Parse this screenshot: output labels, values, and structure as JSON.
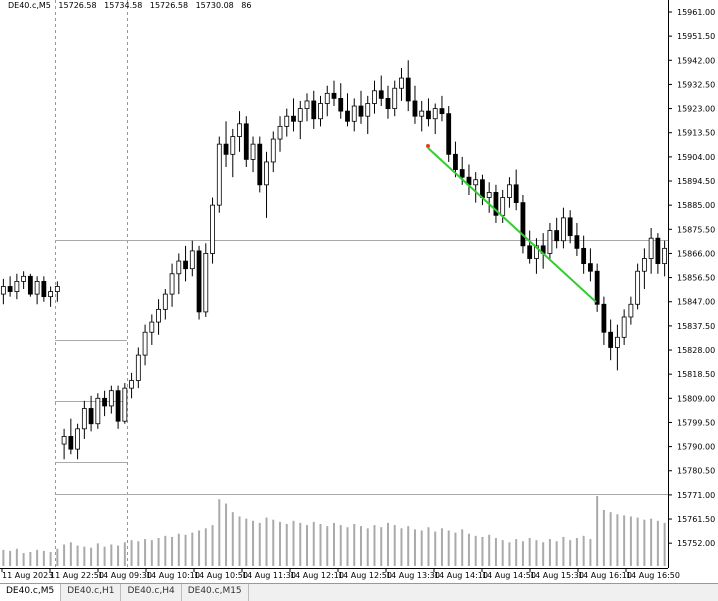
{
  "chart_data": {
    "type": "candlestick",
    "header": {
      "symbol": "DE40.c,M5",
      "ohlc": [
        15726.58,
        15734.58,
        15726.58,
        15730.08
      ],
      "volume": 86
    },
    "ylim": [
      15738.3,
      15965.72
    ],
    "yticks": [
      {
        "value": 15961,
        "label": "15961.00"
      },
      {
        "value": 15951.5,
        "label": "15951.50"
      },
      {
        "value": 15942,
        "label": "15942.00"
      },
      {
        "value": 15932.5,
        "label": "15932.50"
      },
      {
        "value": 15923,
        "label": "15923.00"
      },
      {
        "value": 15913.5,
        "label": "15913.50"
      },
      {
        "value": 15904,
        "label": "15904.00"
      },
      {
        "value": 15894.5,
        "label": "15894.50"
      },
      {
        "value": 15885,
        "label": "15885.00"
      },
      {
        "value": 15875.5,
        "label": "15875.50"
      },
      {
        "value": 15866,
        "label": "15866.00"
      },
      {
        "value": 15856.5,
        "label": "15856.50"
      },
      {
        "value": 15847,
        "label": "15847.00"
      },
      {
        "value": 15837.5,
        "label": "15837.50"
      },
      {
        "value": 15828,
        "label": "15828.00"
      },
      {
        "value": 15818.5,
        "label": "15818.50"
      },
      {
        "value": 15809,
        "label": "15809.00"
      },
      {
        "value": 15799.5,
        "label": "15799.50"
      },
      {
        "value": 15790,
        "label": "15790.00"
      },
      {
        "value": 15780.5,
        "label": "15780.50"
      },
      {
        "value": 15771,
        "label": "15771.00"
      },
      {
        "value": 15761.5,
        "label": "15761.50"
      },
      {
        "value": 15752,
        "label": "15752.00"
      }
    ],
    "xlabels": [
      "11 Aug 2023",
      "11 Aug 22:50",
      "14 Aug 09:30",
      "14 Aug 10:10",
      "14 Aug 10:50",
      "14 Aug 11:30",
      "14 Aug 12:10",
      "14 Aug 12:50",
      "14 Aug 13:30",
      "14 Aug 14:10",
      "14 Aug 14:50",
      "14 Aug 15:30",
      "14 Aug 16:10",
      "14 Aug 16:50"
    ],
    "ohlc": [
      [
        15850,
        15856,
        15846,
        15853
      ],
      [
        15853,
        15857,
        15849,
        15851
      ],
      [
        15851,
        15858,
        15848,
        15855
      ],
      [
        15855,
        15859,
        15852,
        15857
      ],
      [
        15857,
        15858,
        15849,
        15850
      ],
      [
        15850,
        15857,
        15846,
        15855
      ],
      [
        15855,
        15857,
        15847,
        15849
      ],
      [
        15849,
        15853,
        15845,
        15851
      ],
      [
        15851,
        15855,
        15847,
        15853
      ],
      [
        15791,
        15797,
        15785,
        15794
      ],
      [
        15794,
        15801,
        15787,
        15789
      ],
      [
        15789,
        15799,
        15785,
        15797
      ],
      [
        15797,
        15808,
        15793,
        15805
      ],
      [
        15805,
        15810,
        15796,
        15799
      ],
      [
        15799,
        15811,
        15797,
        15809
      ],
      [
        15809,
        15812,
        15802,
        15806
      ],
      [
        15806,
        15814,
        15803,
        15812
      ],
      [
        15812,
        15814,
        15797,
        15800
      ],
      [
        15800,
        15815,
        15799,
        15813
      ],
      [
        15813,
        15819,
        15809,
        15816
      ],
      [
        15816,
        15829,
        15813,
        15826
      ],
      [
        15826,
        15838,
        15822,
        15835
      ],
      [
        15835,
        15842,
        15830,
        15839
      ],
      [
        15839,
        15848,
        15834,
        15844
      ],
      [
        15844,
        15852,
        15840,
        15850
      ],
      [
        15850,
        15862,
        15845,
        15858
      ],
      [
        15858,
        15866,
        15850,
        15863
      ],
      [
        15863,
        15869,
        15855,
        15860
      ],
      [
        15860,
        15871,
        15857,
        15867
      ],
      [
        15867,
        15869,
        15840,
        15843
      ],
      [
        15843,
        15870,
        15841,
        15866
      ],
      [
        15866,
        15888,
        15862,
        15885
      ],
      [
        15885,
        15912,
        15882,
        15909
      ],
      [
        15909,
        15918,
        15900,
        15905
      ],
      [
        15905,
        15915,
        15896,
        15912
      ],
      [
        15912,
        15922,
        15906,
        15917
      ],
      [
        15917,
        15920,
        15900,
        15903
      ],
      [
        15903,
        15912,
        15898,
        15909
      ],
      [
        15909,
        15912,
        15890,
        15893
      ],
      [
        15893,
        15906,
        15880,
        15902
      ],
      [
        15902,
        15914,
        15898,
        15911
      ],
      [
        15911,
        15920,
        15906,
        15916
      ],
      [
        15916,
        15923,
        15912,
        15920
      ],
      [
        15920,
        15927,
        15914,
        15918
      ],
      [
        15918,
        15926,
        15911,
        15923
      ],
      [
        15923,
        15929,
        15918,
        15926
      ],
      [
        15926,
        15930,
        15915,
        15919
      ],
      [
        15919,
        15928,
        15916,
        15925
      ],
      [
        15925,
        15932,
        15920,
        15929
      ],
      [
        15929,
        15934,
        15924,
        15927
      ],
      [
        15927,
        15933,
        15919,
        15922
      ],
      [
        15922,
        15929,
        15916,
        15918
      ],
      [
        15918,
        15927,
        15914,
        15924
      ],
      [
        15924,
        15930,
        15917,
        15920
      ],
      [
        15920,
        15928,
        15913,
        15925
      ],
      [
        15925,
        15934,
        15921,
        15930
      ],
      [
        15930,
        15936,
        15924,
        15927
      ],
      [
        15927,
        15932,
        15919,
        15923
      ],
      [
        15923,
        15934,
        15920,
        15931
      ],
      [
        15931,
        15939,
        15926,
        15935
      ],
      [
        15935,
        15942,
        15922,
        15926
      ],
      [
        15926,
        15932,
        15917,
        15920
      ],
      [
        15920,
        15926,
        15914,
        15922
      ],
      [
        15922,
        15927,
        15916,
        15919
      ],
      [
        15919,
        15925,
        15913,
        15923
      ],
      [
        15923,
        15928,
        15918,
        15921
      ],
      [
        15921,
        15924,
        15902,
        15905
      ],
      [
        15905,
        15910,
        15896,
        15899
      ],
      [
        15899,
        15904,
        15893,
        15896
      ],
      [
        15896,
        15901,
        15889,
        15893
      ],
      [
        15893,
        15898,
        15886,
        15895
      ],
      [
        15895,
        15897,
        15885,
        15888
      ],
      [
        15888,
        15894,
        15882,
        15890
      ],
      [
        15890,
        15893,
        15878,
        15881
      ],
      [
        15881,
        15891,
        15878,
        15888
      ],
      [
        15888,
        15896,
        15884,
        15893
      ],
      [
        15893,
        15899,
        15883,
        15886
      ],
      [
        15886,
        15889,
        15866,
        15869
      ],
      [
        15869,
        15875,
        15862,
        15864
      ],
      [
        15864,
        15872,
        15858,
        15869
      ],
      [
        15869,
        15874,
        15860,
        15866
      ],
      [
        15866,
        15878,
        15864,
        15875
      ],
      [
        15875,
        15880,
        15868,
        15871
      ],
      [
        15871,
        15884,
        15868,
        15880
      ],
      [
        15880,
        15883,
        15870,
        15873
      ],
      [
        15873,
        15878,
        15865,
        15868
      ],
      [
        15868,
        15873,
        15858,
        15862
      ],
      [
        15862,
        15868,
        15855,
        15859
      ],
      [
        15859,
        15862,
        15843,
        15846
      ],
      [
        15846,
        15849,
        15830,
        15835
      ],
      [
        15835,
        15840,
        15824,
        15829
      ],
      [
        15829,
        15838,
        15820,
        15833
      ],
      [
        15833,
        15844,
        15830,
        15841
      ],
      [
        15841,
        15849,
        15838,
        15846
      ],
      [
        15846,
        15862,
        15844,
        15859
      ],
      [
        15859,
        15868,
        15852,
        15864
      ],
      [
        15864,
        15876,
        15858,
        15872
      ],
      [
        15872,
        15874,
        15858,
        15862
      ],
      [
        15862,
        15871,
        15857,
        15868
      ]
    ],
    "volumes": [
      15,
      14,
      16,
      12,
      13,
      15,
      14,
      13,
      16,
      20,
      22,
      19,
      18,
      17,
      21,
      18,
      20,
      19,
      22,
      24,
      23,
      25,
      24,
      26,
      28,
      27,
      30,
      29,
      31,
      33,
      35,
      38,
      62,
      58,
      50,
      46,
      44,
      42,
      40,
      45,
      43,
      41,
      39,
      42,
      40,
      38,
      41,
      39,
      37,
      40,
      38,
      36,
      39,
      37,
      35,
      38,
      36,
      40,
      38,
      35,
      37,
      34,
      33,
      36,
      32,
      35,
      33,
      31,
      34,
      30,
      28,
      27,
      29,
      26,
      24,
      22,
      25,
      23,
      26,
      24,
      22,
      25,
      23,
      27,
      24,
      26,
      28,
      25,
      65,
      52,
      50,
      48,
      47,
      46,
      45,
      43,
      44,
      42,
      40
    ],
    "tabs": [
      "DE40.c,M5",
      "DE40.c,H1",
      "DE40.c,H4",
      "DE40.c,M15"
    ]
  }
}
